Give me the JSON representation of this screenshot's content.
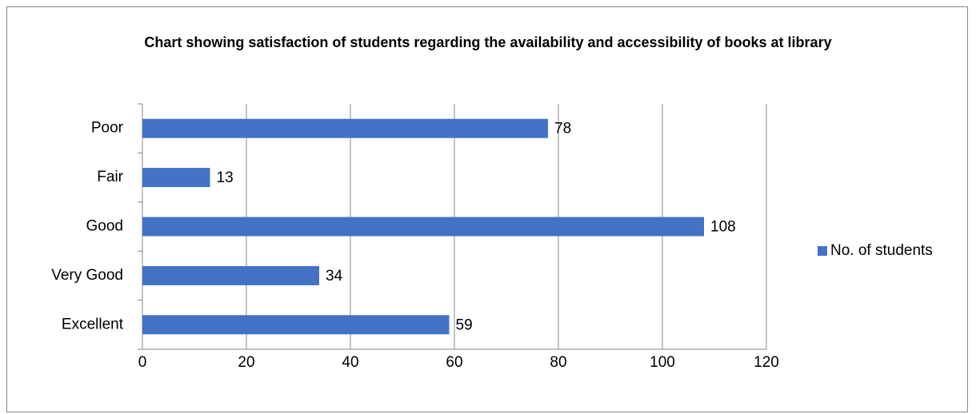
{
  "chart_data": {
    "type": "bar",
    "orientation": "horizontal",
    "title": "Chart showing satisfaction of students regarding the availability and accessibility of books at library",
    "categories": [
      "Poor",
      "Fair",
      "Good",
      "Very Good",
      "Excellent"
    ],
    "series": [
      {
        "name": "No. of students",
        "color": "#4472c4",
        "values": [
          78,
          13,
          108,
          34,
          59
        ]
      }
    ],
    "xlim": [
      0,
      120
    ],
    "xticks": [
      0,
      20,
      40,
      60,
      80,
      100,
      120
    ],
    "grid": true,
    "legend": "right"
  }
}
